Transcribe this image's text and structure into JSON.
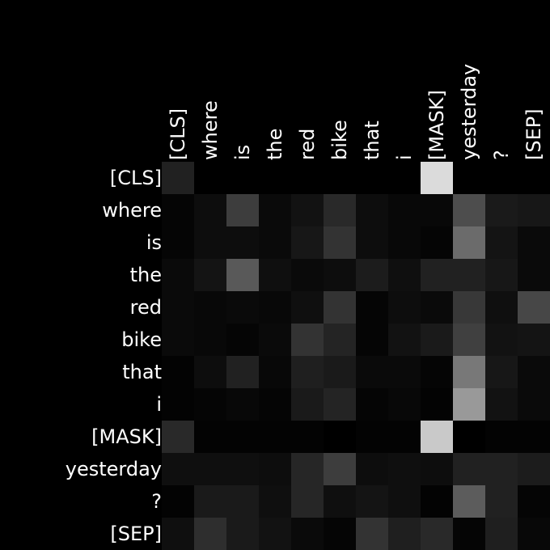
{
  "chart_data": {
    "type": "heatmap",
    "title": "",
    "xlabel": "",
    "ylabel": "",
    "colormap": "grayscale (black = 0, white = max)",
    "background": "#000000",
    "x_labels": [
      "[CLS]",
      "where",
      "is",
      "the",
      "red",
      "bike",
      "that",
      "i",
      "[MASK]",
      "yesterday",
      "?",
      "[SEP]"
    ],
    "y_labels": [
      "[CLS]",
      "where",
      "is",
      "the",
      "red",
      "bike",
      "that",
      "i",
      "[MASK]",
      "yesterday",
      "?",
      "[SEP]"
    ],
    "values": [
      [
        0.13,
        0.0,
        0.0,
        0.0,
        0.0,
        0.0,
        0.0,
        0.0,
        0.86,
        0.0,
        0.0,
        0.0
      ],
      [
        0.02,
        0.05,
        0.24,
        0.04,
        0.07,
        0.16,
        0.05,
        0.03,
        0.03,
        0.3,
        0.1,
        0.09
      ],
      [
        0.02,
        0.05,
        0.05,
        0.04,
        0.09,
        0.2,
        0.05,
        0.03,
        0.02,
        0.42,
        0.08,
        0.04
      ],
      [
        0.04,
        0.08,
        0.35,
        0.06,
        0.04,
        0.05,
        0.11,
        0.06,
        0.13,
        0.13,
        0.09,
        0.04
      ],
      [
        0.04,
        0.03,
        0.04,
        0.03,
        0.06,
        0.2,
        0.02,
        0.05,
        0.04,
        0.22,
        0.06,
        0.28
      ],
      [
        0.04,
        0.03,
        0.02,
        0.04,
        0.2,
        0.14,
        0.02,
        0.07,
        0.1,
        0.25,
        0.07,
        0.08
      ],
      [
        0.01,
        0.05,
        0.13,
        0.03,
        0.12,
        0.1,
        0.04,
        0.04,
        0.02,
        0.47,
        0.09,
        0.04
      ],
      [
        0.01,
        0.02,
        0.03,
        0.02,
        0.1,
        0.14,
        0.02,
        0.03,
        0.01,
        0.6,
        0.07,
        0.04
      ],
      [
        0.16,
        0.01,
        0.01,
        0.01,
        0.01,
        0.0,
        0.01,
        0.01,
        0.79,
        0.0,
        0.01,
        0.01
      ],
      [
        0.06,
        0.06,
        0.06,
        0.05,
        0.15,
        0.24,
        0.05,
        0.06,
        0.05,
        0.13,
        0.13,
        0.11
      ],
      [
        0.01,
        0.1,
        0.1,
        0.06,
        0.15,
        0.06,
        0.08,
        0.06,
        0.01,
        0.36,
        0.13,
        0.02
      ],
      [
        0.06,
        0.18,
        0.1,
        0.07,
        0.04,
        0.02,
        0.2,
        0.12,
        0.16,
        0.02,
        0.12,
        0.03
      ]
    ]
  }
}
